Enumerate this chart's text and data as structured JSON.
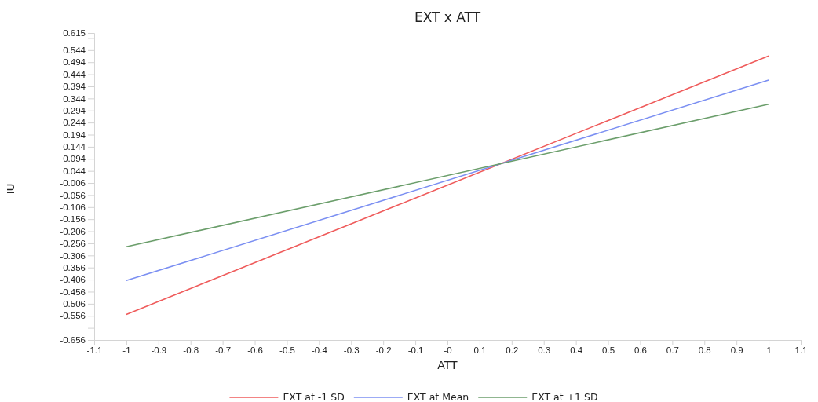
{
  "chart_data": {
    "type": "line",
    "title": "EXT x ATT",
    "xlabel": "ATT",
    "ylabel": "IU",
    "x": [
      -1,
      1
    ],
    "series": [
      {
        "name": "EXT at -1 SD",
        "color": "#ef5b5b",
        "values": [
          -0.55,
          0.52
        ]
      },
      {
        "name": "EXT at Mean",
        "color": "#7b8ff2",
        "values": [
          -0.41,
          0.42
        ]
      },
      {
        "name": "EXT at +1 SD",
        "color": "#6b9e6b",
        "values": [
          -0.27,
          0.32
        ]
      }
    ],
    "xlim": [
      -1.1,
      1.1
    ],
    "xticks": [
      -1.1,
      -1,
      -0.9,
      -0.8,
      -0.7,
      -0.6,
      -0.5,
      -0.4,
      -0.3,
      -0.2,
      -0.1,
      {
        "value": 0,
        "label": "-0"
      },
      0.1,
      0.2,
      0.3,
      0.4,
      0.5,
      0.6,
      0.7,
      0.8,
      0.9,
      1,
      1.1
    ],
    "ylim": [
      -0.656,
      0.615
    ],
    "yticks": [
      -0.656,
      {
        "value": -0.606,
        "label": null
      },
      -0.556,
      -0.506,
      -0.456,
      -0.406,
      -0.356,
      -0.306,
      -0.256,
      -0.206,
      -0.156,
      -0.106,
      -0.056,
      -0.006,
      0.044,
      0.094,
      0.144,
      0.194,
      0.244,
      0.294,
      0.344,
      0.394,
      0.444,
      0.494,
      0.544,
      {
        "value": 0.594,
        "label": null
      },
      0.615
    ],
    "grid": false,
    "legend": "bottom",
    "marker": "none",
    "line_style": "solid"
  }
}
